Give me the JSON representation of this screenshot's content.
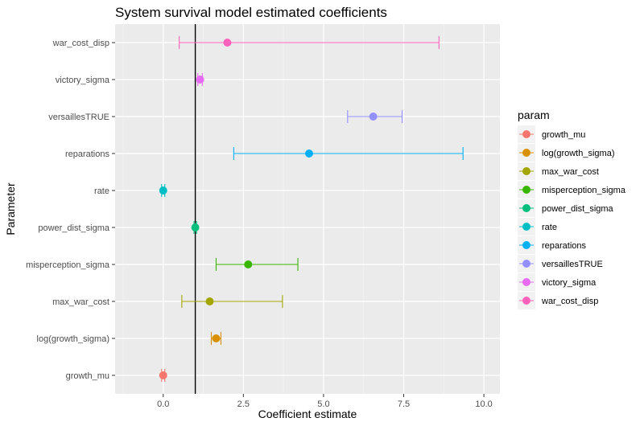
{
  "chart_data": {
    "type": "scatter",
    "title": "System survival model estimated coefficients",
    "xlabel": "Coefficient estimate",
    "ylabel": "Parameter",
    "xlim": [
      -1.5,
      10.5
    ],
    "x_ticks": [
      0.0,
      2.5,
      5.0,
      7.5,
      10.0
    ],
    "x_tick_labels": [
      "0.0",
      "2.5",
      "5.0",
      "7.5",
      "10.0"
    ],
    "reference_line_x": 1,
    "grid": true,
    "legend": {
      "title": "param",
      "position": "right"
    },
    "categories": [
      "growth_mu",
      "log(growth_sigma)",
      "max_war_cost",
      "misperception_sigma",
      "power_dist_sigma",
      "rate",
      "reparations",
      "versaillesTRUE",
      "victory_sigma",
      "war_cost_disp"
    ],
    "series": [
      {
        "name": "growth_mu",
        "color": "#F8766D",
        "estimate": 0.0,
        "lower": -0.05,
        "upper": 0.05
      },
      {
        "name": "log(growth_sigma)",
        "color": "#D89000",
        "estimate": 1.65,
        "lower": 1.5,
        "upper": 1.8
      },
      {
        "name": "max_war_cost",
        "color": "#A3A500",
        "estimate": 1.45,
        "lower": 0.58,
        "upper": 3.72
      },
      {
        "name": "misperception_sigma",
        "color": "#39B600",
        "estimate": 2.65,
        "lower": 1.65,
        "upper": 4.2
      },
      {
        "name": "power_dist_sigma",
        "color": "#00BF7D",
        "estimate": 1.0,
        "lower": 0.96,
        "upper": 1.04
      },
      {
        "name": "rate",
        "color": "#00BFC4",
        "estimate": 0.0,
        "lower": -0.05,
        "upper": 0.05
      },
      {
        "name": "reparations",
        "color": "#00B0F6",
        "estimate": 4.55,
        "lower": 2.2,
        "upper": 9.35
      },
      {
        "name": "versaillesTRUE",
        "color": "#9590FF",
        "estimate": 6.55,
        "lower": 5.75,
        "upper": 7.45
      },
      {
        "name": "victory_sigma",
        "color": "#E76BF3",
        "estimate": 1.15,
        "lower": 1.08,
        "upper": 1.22
      },
      {
        "name": "war_cost_disp",
        "color": "#FF62BC",
        "estimate": 2.0,
        "lower": 0.5,
        "upper": 8.6
      }
    ]
  }
}
